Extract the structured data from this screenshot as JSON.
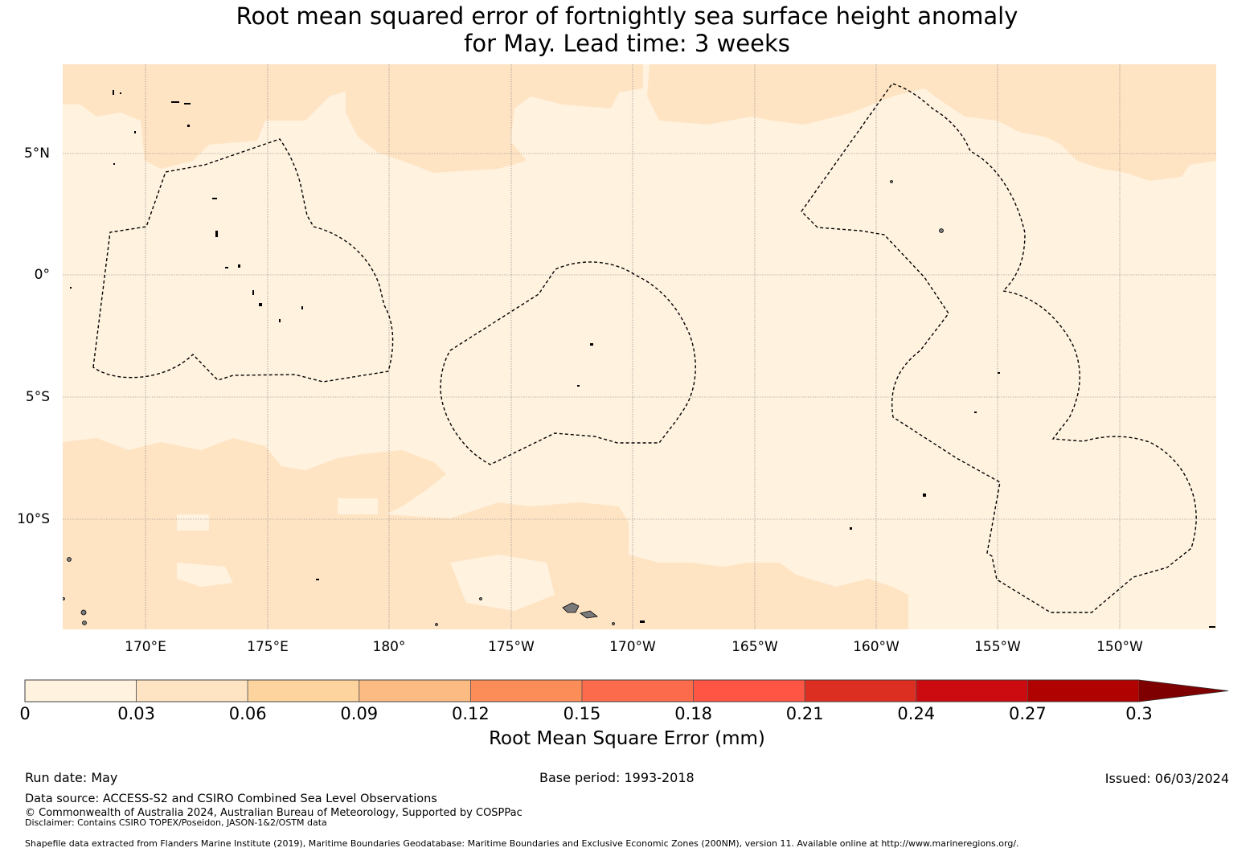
{
  "title_line1": "Root mean squared error of fortnightly sea surface height anomaly",
  "title_line2": "for May. Lead time: 3 weeks",
  "map": {
    "lat_labels": [
      "5°N",
      "0°",
      "5°S",
      "10°S"
    ],
    "lat_values": [
      5,
      0,
      -5,
      -10
    ],
    "lon_labels": [
      "170°E",
      "175°E",
      "180°",
      "175°W",
      "170°W",
      "165°W",
      "160°W",
      "155°W",
      "150°W"
    ],
    "lon_values": [
      170,
      175,
      180,
      185,
      190,
      195,
      200,
      205,
      210
    ],
    "lon_range": [
      166.6,
      213.9
    ],
    "lat_range": [
      -14.5,
      8.7
    ]
  },
  "colorbar": {
    "ticks": [
      "0",
      "0.03",
      "0.06",
      "0.09",
      "0.12",
      "0.15",
      "0.18",
      "0.21",
      "0.24",
      "0.27",
      "0.3"
    ],
    "colors": [
      "#fff2df",
      "#ffe4c4",
      "#fdd49e",
      "#fdbb84",
      "#fc8d59",
      "#fc6c4c",
      "#ff5544",
      "#dc2f22",
      "#cc0b10",
      "#b10202",
      "#7f0000"
    ],
    "label": "Root Mean Square Error (mm)"
  },
  "footer": {
    "run_date": "Run date: May",
    "base_period": "Base period: 1993-2018",
    "issued": "Issued: 06/03/2024",
    "data_source": "Data source: ACCESS-S2 and CSIRO Combined Sea Level Observations",
    "copyright": "© Commonwealth of Australia 2024, Australian Bureau of Meteorology, Supported by COSPPac",
    "disclaimer": "Disclaimer: Contains CSIRO TOPEX/Poseidon, JASON-1&2/OSTM data",
    "shapefile": "Shapefile data extracted from Flanders Marine Institute (2019), Maritime Boundaries Geodatabase: Maritime Boundaries and Exclusive Economic Zones (200NM), version 11. Available online at http://www.marineregions.org/."
  }
}
